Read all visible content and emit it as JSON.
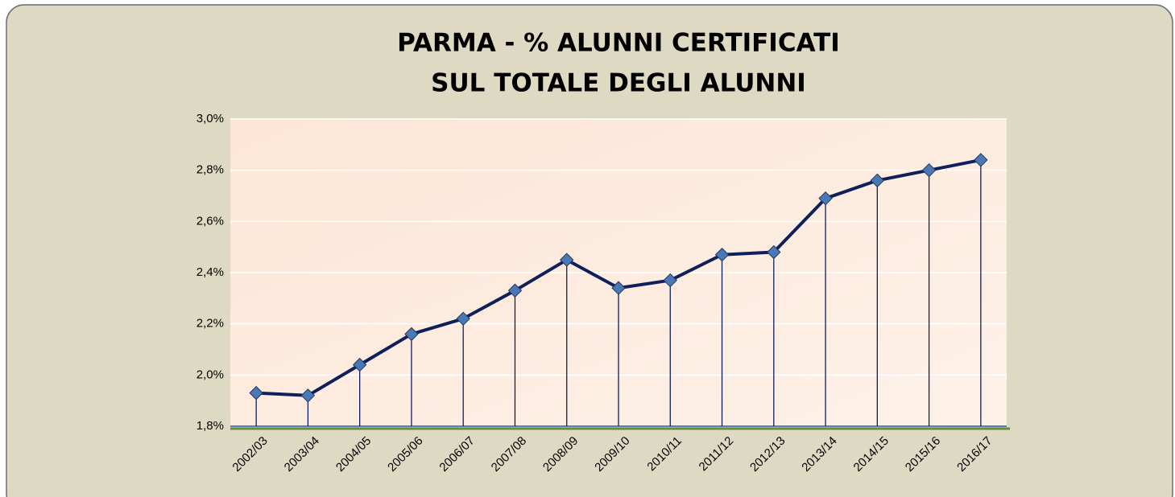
{
  "chart_data": {
    "type": "line",
    "title": [
      "PARMA - % ALUNNI CERTIFICATI",
      "SUL TOTALE DEGLI ALUNNI"
    ],
    "categories": [
      "2002/03",
      "2003/04",
      "2004/05",
      "2005/06",
      "2006/07",
      "2007/08",
      "2008/09",
      "2009/10",
      "2010/11",
      "2011/12",
      "2012/13",
      "2013/14",
      "2014/15",
      "2015/16",
      "2016/17"
    ],
    "values": [
      1.93,
      1.92,
      2.04,
      2.16,
      2.22,
      2.33,
      2.45,
      2.34,
      2.37,
      2.47,
      2.48,
      2.69,
      2.76,
      2.8,
      2.84
    ],
    "color": "#0f1f5c",
    "marker_color": "#4a78b5",
    "ylim": [
      1.8,
      3.0
    ],
    "yticks": [
      {
        "value": 1.8,
        "label": "1,8%"
      },
      {
        "value": 2.0,
        "label": "2,0%"
      },
      {
        "value": 2.2,
        "label": "2,2%"
      },
      {
        "value": 2.4,
        "label": "2,4%"
      },
      {
        "value": 2.6,
        "label": "2,6%"
      },
      {
        "value": 2.8,
        "label": "2,8%"
      },
      {
        "value": 3.0,
        "label": "3,0%"
      }
    ],
    "grid": true,
    "drop_lines": true
  }
}
